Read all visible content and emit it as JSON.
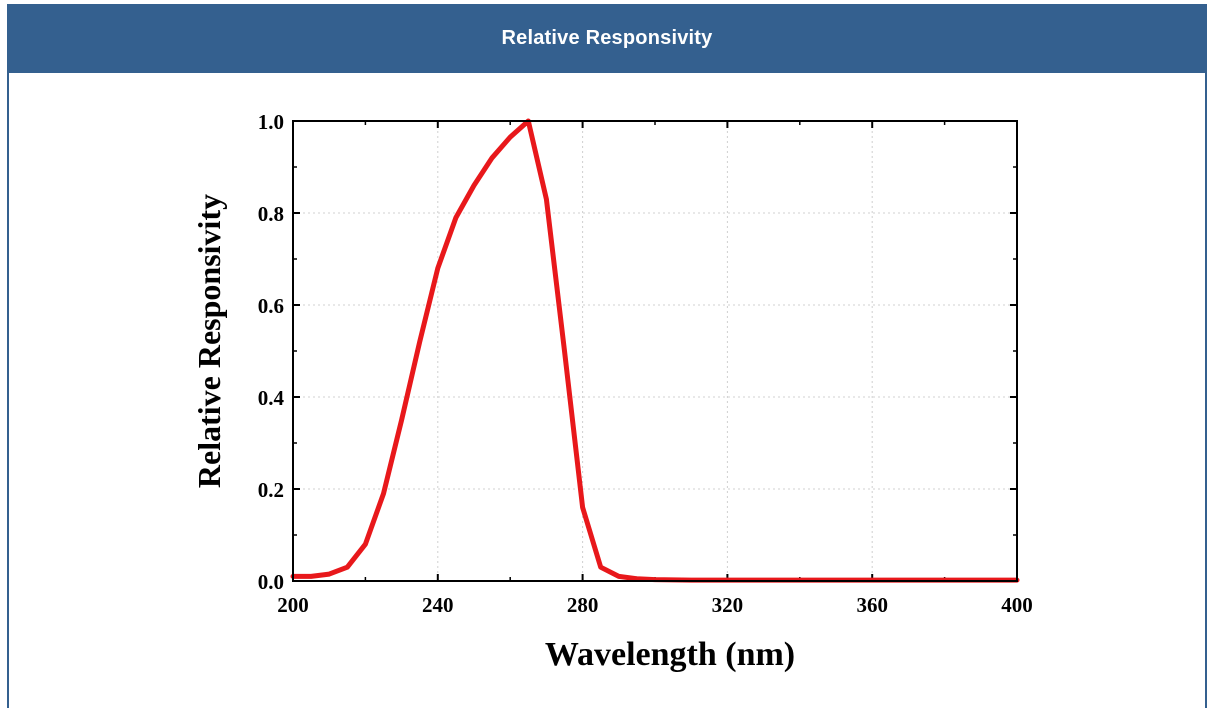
{
  "panel": {
    "title": "Relative Responsivity"
  },
  "colors": {
    "header_bg": "#34608f",
    "header_text": "#ffffff",
    "line": "#e8181b",
    "grid": "#d0d0d0",
    "axis": "#000000"
  },
  "chart_data": {
    "type": "line",
    "title": "",
    "xlabel": "Wavelength (nm)",
    "ylabel": "Relative Responsivity",
    "xlim": [
      200,
      400
    ],
    "ylim": [
      0,
      1.0
    ],
    "xticks": [
      200,
      240,
      280,
      320,
      360,
      400
    ],
    "yticks": [
      0.0,
      0.2,
      0.4,
      0.6,
      0.8,
      1.0
    ],
    "xtick_labels": [
      "200",
      "240",
      "280",
      "320",
      "360",
      "400"
    ],
    "ytick_labels": [
      "0.0",
      "0.2",
      "0.4",
      "0.6",
      "0.8",
      "1.0"
    ],
    "grid": true,
    "series": [
      {
        "color": "#e8181b",
        "x": [
          200,
          205,
          210,
          215,
          220,
          225,
          230,
          235,
          240,
          245,
          250,
          255,
          260,
          265,
          270,
          275,
          280,
          285,
          290,
          295,
          300,
          310,
          320,
          340,
          360,
          380,
          400
        ],
        "y": [
          0.01,
          0.01,
          0.015,
          0.03,
          0.08,
          0.19,
          0.35,
          0.52,
          0.68,
          0.79,
          0.86,
          0.92,
          0.965,
          1.0,
          0.83,
          0.5,
          0.16,
          0.03,
          0.01,
          0.005,
          0.003,
          0.002,
          0.002,
          0.002,
          0.002,
          0.002,
          0.002
        ]
      }
    ]
  }
}
